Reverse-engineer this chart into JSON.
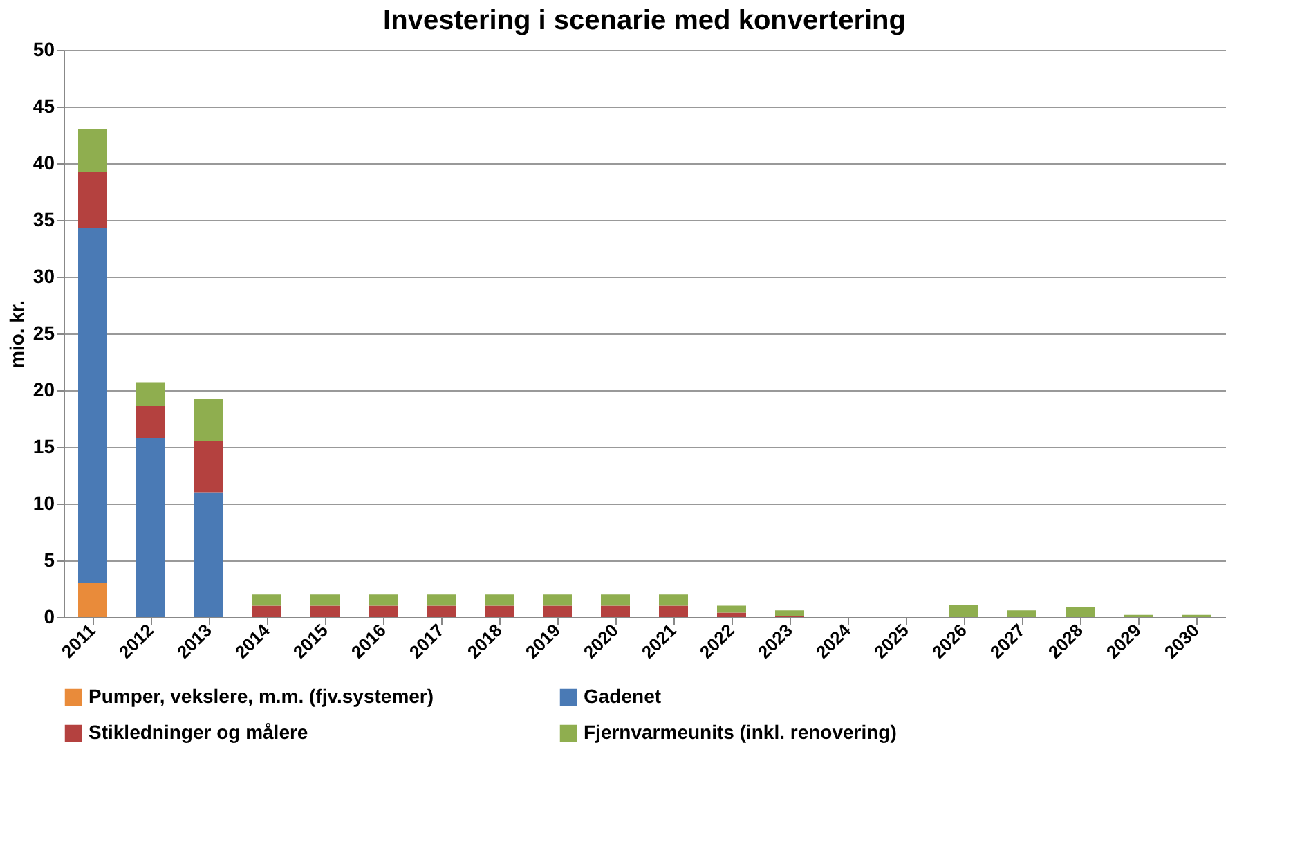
{
  "chart_data": {
    "type": "bar",
    "title": "Investering  i scenarie med konvertering",
    "ylabel": "mio. kr.",
    "categories": [
      "2011",
      "2012",
      "2013",
      "2014",
      "2015",
      "2016",
      "2017",
      "2018",
      "2019",
      "2020",
      "2021",
      "2022",
      "2023",
      "2024",
      "2025",
      "2026",
      "2027",
      "2028",
      "2029",
      "2030"
    ],
    "stacked": true,
    "series": [
      {
        "name": "Pumper, vekslere, m.m. (fjv.systemer)",
        "color": "#e98b3a",
        "values": [
          3,
          0,
          0,
          0,
          0,
          0,
          0,
          0,
          0,
          0,
          0,
          0,
          0,
          0,
          0,
          0,
          0,
          0,
          0,
          0
        ]
      },
      {
        "name": "Gadenet",
        "color": "#4a7ab5",
        "values": [
          31.3,
          15.8,
          11,
          0,
          0,
          0,
          0,
          0,
          0,
          0,
          0,
          0,
          0,
          0,
          0,
          0,
          0,
          0,
          0,
          0
        ]
      },
      {
        "name": "Stikledninger og målere",
        "color": "#b4413f",
        "values": [
          4.9,
          2.8,
          4.5,
          1,
          1,
          1,
          1,
          1,
          1,
          1,
          1,
          0.4,
          0.1,
          0,
          0,
          0,
          0,
          0,
          0,
          0
        ]
      },
      {
        "name": "Fjernvarmeunits (inkl. renovering)",
        "color": "#8fae4f",
        "values": [
          3.8,
          2.1,
          3.7,
          1,
          1,
          1,
          1,
          1,
          1,
          1,
          1,
          0.6,
          0.5,
          0,
          0,
          1.1,
          0.6,
          0.9,
          0.2,
          0.2
        ]
      }
    ],
    "ylim": [
      0,
      50
    ],
    "yticks": [
      0,
      5,
      10,
      15,
      20,
      25,
      30,
      35,
      40,
      45,
      50
    ],
    "grid": "y",
    "legend": "bottom"
  }
}
